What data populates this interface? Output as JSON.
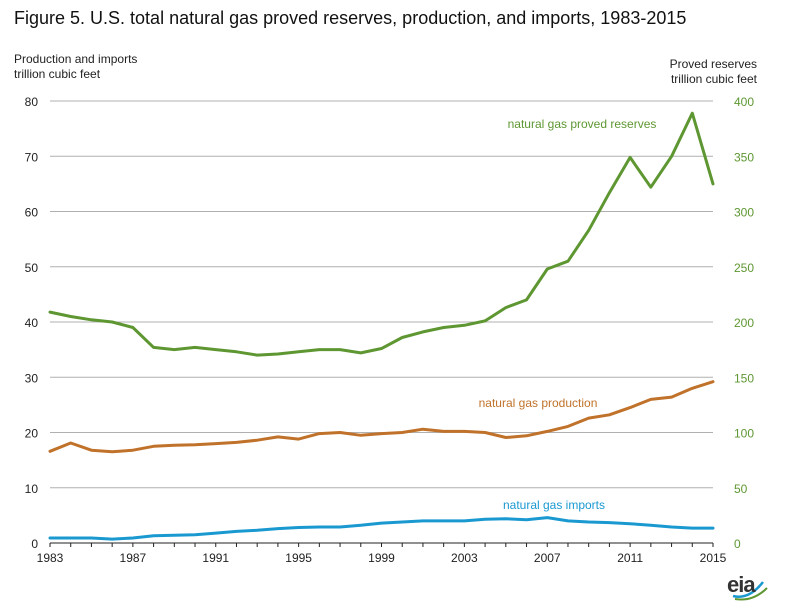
{
  "title": "Figure 5. U.S. total natural gas proved reserves, production, and imports, 1983-2015",
  "left_axis_label": [
    "Production and imports",
    "trillion cubic feet"
  ],
  "right_axis_label": [
    "Proved reserves",
    "trillion cubic feet"
  ],
  "logo_text": "eia",
  "colors": {
    "reserves": "#5e9732",
    "production": "#c0722a",
    "imports": "#1a99d1",
    "grid": "#b0b0b0",
    "right_axis_text": "#5e9732"
  },
  "chart_data": {
    "type": "line",
    "x": [
      1983,
      1984,
      1985,
      1986,
      1987,
      1988,
      1989,
      1990,
      1991,
      1992,
      1993,
      1994,
      1995,
      1996,
      1997,
      1998,
      1999,
      2000,
      2001,
      2002,
      2003,
      2004,
      2005,
      2006,
      2007,
      2008,
      2009,
      2010,
      2011,
      2012,
      2013,
      2014,
      2015
    ],
    "x_tick_labels": [
      "1983",
      "1987",
      "1991",
      "1995",
      "1999",
      "2003",
      "2007",
      "2011",
      "2015"
    ],
    "left_ylim": [
      0,
      80
    ],
    "left_yticks": [
      "0",
      "10",
      "20",
      "30",
      "40",
      "50",
      "60",
      "70",
      "80"
    ],
    "right_ylim": [
      0,
      400
    ],
    "right_yticks": [
      "0",
      "50",
      "100",
      "150",
      "200",
      "250",
      "300",
      "350",
      "400"
    ],
    "grid": true,
    "series": [
      {
        "name": "natural gas proved reserves",
        "axis": "right",
        "values": [
          209,
          205,
          202,
          200,
          195,
          177,
          175,
          177,
          175,
          173,
          170,
          171,
          173,
          175,
          175,
          172,
          176,
          186,
          191,
          195,
          197,
          201,
          213,
          220,
          248,
          255,
          283,
          317,
          349,
          322,
          350,
          389,
          325
        ]
      },
      {
        "name": "natural gas production",
        "axis": "left",
        "values": [
          16.6,
          18.1,
          16.8,
          16.5,
          16.8,
          17.5,
          17.7,
          17.8,
          18.0,
          18.2,
          18.6,
          19.2,
          18.8,
          19.8,
          20.0,
          19.5,
          19.8,
          20.0,
          20.6,
          20.2,
          20.2,
          20.0,
          19.1,
          19.4,
          20.2,
          21.1,
          22.6,
          23.2,
          24.5,
          26.0,
          26.4,
          28.0,
          29.2
        ]
      },
      {
        "name": "natural gas imports",
        "axis": "left",
        "values": [
          0.9,
          0.9,
          0.9,
          0.7,
          0.9,
          1.3,
          1.4,
          1.5,
          1.8,
          2.1,
          2.3,
          2.6,
          2.8,
          2.9,
          2.9,
          3.2,
          3.6,
          3.8,
          4.0,
          4.0,
          4.0,
          4.3,
          4.4,
          4.2,
          4.6,
          4.0,
          3.8,
          3.7,
          3.5,
          3.2,
          2.9,
          2.7,
          2.7
        ]
      }
    ]
  }
}
